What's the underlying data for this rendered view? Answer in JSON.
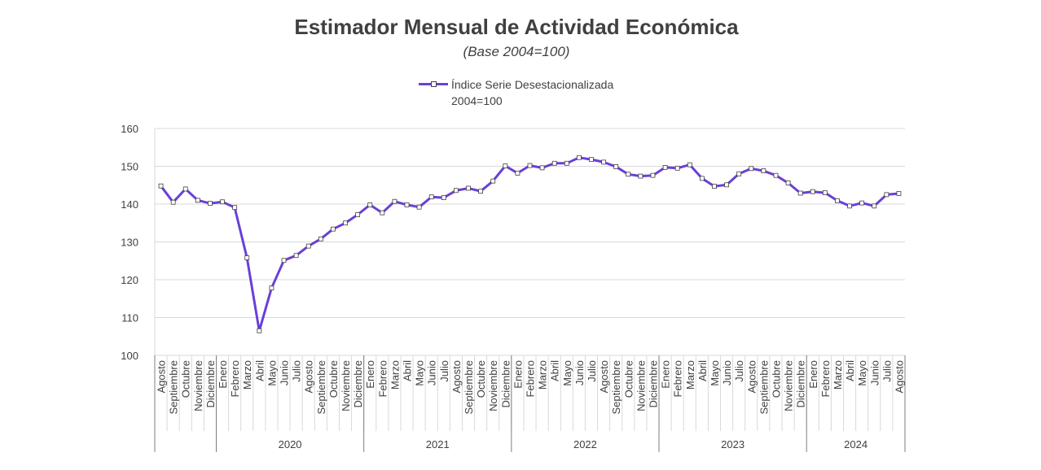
{
  "title": "Estimador Mensual de Actividad Económica",
  "subtitle": "(Base 2004=100)",
  "legend": {
    "label": "Índice Serie Desestacionalizada 2004=100"
  },
  "colors": {
    "series": "#6a3fd9",
    "grid": "#d9d9d9",
    "axis": "#7f7f7f"
  },
  "chart_data": {
    "type": "line",
    "title": "Estimador Mensual de Actividad Económica",
    "subtitle": "(Base 2004=100)",
    "xlabel": "",
    "ylabel": "",
    "ylim": [
      100,
      160
    ],
    "yticks": [
      100,
      110,
      120,
      130,
      140,
      150,
      160
    ],
    "grid": true,
    "legend_position": "top-center",
    "categories": [
      "Agosto",
      "Septiembre",
      "Octubre",
      "Noviembre",
      "Diciembre",
      "Enero",
      "Febrero",
      "Marzo",
      "Abril",
      "Mayo",
      "Junio",
      "Julio",
      "Agosto",
      "Septiembre",
      "Octubre",
      "Noviembre",
      "Diciembre",
      "Enero",
      "Febrero",
      "Marzo",
      "Abril",
      "Mayo",
      "Junio",
      "Julio",
      "Agosto",
      "Septiembre",
      "Octubre",
      "Noviembre",
      "Diciembre",
      "Enero",
      "Febrero",
      "Marzo",
      "Abril",
      "Mayo",
      "Junio",
      "Julio",
      "Agosto",
      "Septiembre",
      "Octubre",
      "Noviembre",
      "Diciembre",
      "Enero",
      "Febrero",
      "Marzo",
      "Abril",
      "Mayo",
      "Junio",
      "Julio",
      "Agosto",
      "Septiembre",
      "Octubre",
      "Noviembre",
      "Diciembre",
      "Enero",
      "Febrero",
      "Marzo",
      "Abril",
      "Mayo",
      "Junio",
      "Julio",
      "Agosto"
    ],
    "year_groups": [
      {
        "label": "",
        "start": 0,
        "count": 5
      },
      {
        "label": "2020",
        "start": 5,
        "count": 12
      },
      {
        "label": "2021",
        "start": 17,
        "count": 12
      },
      {
        "label": "2022",
        "start": 29,
        "count": 12
      },
      {
        "label": "2023",
        "start": 41,
        "count": 12
      },
      {
        "label": "2024",
        "start": 53,
        "count": 8
      }
    ],
    "series": [
      {
        "name": "Índice Serie Desestacionalizada 2004=100",
        "values": [
          144.8,
          140.5,
          144.0,
          141.0,
          140.2,
          140.6,
          139.1,
          125.8,
          106.5,
          117.8,
          125.1,
          126.4,
          128.9,
          130.8,
          133.4,
          135.0,
          137.2,
          139.8,
          137.7,
          140.7,
          139.8,
          139.2,
          141.9,
          141.7,
          143.6,
          144.2,
          143.4,
          146.1,
          150.1,
          148.2,
          150.2,
          149.6,
          150.8,
          150.8,
          152.3,
          151.8,
          151.1,
          149.9,
          147.9,
          147.4,
          147.6,
          149.7,
          149.5,
          150.4,
          146.8,
          144.7,
          145.1,
          148.0,
          149.4,
          148.8,
          147.6,
          145.6,
          142.9,
          143.3,
          143.0,
          140.9,
          139.5,
          140.3,
          139.5,
          142.5,
          142.8
        ]
      }
    ]
  }
}
